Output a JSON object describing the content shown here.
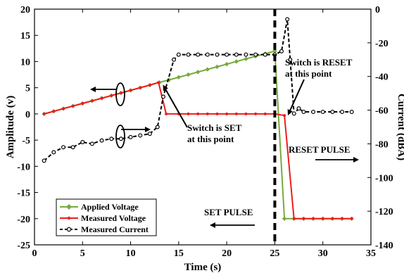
{
  "chart_data": {
    "type": "line",
    "xlabel": "Time (s)",
    "ylabel_left": "Amplitude (v)",
    "ylabel_right": "Current (dBA)",
    "xlim": [
      0,
      35
    ],
    "ylim_left": [
      -25,
      20
    ],
    "ylim_right": [
      -140,
      0
    ],
    "x_ticks": [
      0,
      5,
      10,
      15,
      20,
      25,
      30,
      35
    ],
    "y_left_ticks": [
      -25,
      -20,
      -15,
      -10,
      -5,
      0,
      5,
      10,
      15,
      20
    ],
    "y_right_ticks": [
      -140,
      -120,
      -100,
      -80,
      -60,
      -40,
      -20,
      0
    ],
    "series": [
      {
        "name": "Applied Voltage",
        "axis": "left",
        "color": "#77ab3c",
        "marker": "diamond",
        "x": [
          1,
          2,
          3,
          4,
          5,
          6,
          7,
          8,
          9,
          10,
          11,
          12,
          13,
          14,
          15,
          16,
          17,
          18,
          19,
          20,
          21,
          22,
          23,
          24,
          25,
          26,
          27,
          28,
          29,
          30,
          31,
          32,
          33
        ],
        "y": [
          0,
          0.5,
          1,
          1.5,
          2,
          2.5,
          3,
          3.5,
          4,
          4.5,
          5,
          5.5,
          6,
          6.5,
          7,
          7.5,
          8,
          8.5,
          9,
          9.5,
          10,
          10.5,
          11,
          11.5,
          12,
          -20,
          -20,
          -20,
          -20,
          -20,
          -20,
          -20,
          -20
        ]
      },
      {
        "name": "Measured Voltage",
        "axis": "left",
        "color": "#ee1c1c",
        "marker": "dot",
        "x": [
          1,
          2,
          3,
          4,
          5,
          6,
          7,
          8,
          9,
          10,
          11,
          12,
          12.9,
          13.7,
          15,
          16,
          17,
          18,
          19,
          20,
          21,
          22,
          23,
          24,
          25,
          26,
          27,
          28,
          29,
          30,
          31,
          32,
          33
        ],
        "y": [
          0,
          0.5,
          1,
          1.5,
          2,
          2.5,
          3,
          3.5,
          4,
          4.5,
          5,
          5.5,
          6,
          0,
          0,
          0,
          0,
          0,
          0,
          0,
          0,
          0,
          0,
          0,
          0,
          -0.3,
          -20,
          -20,
          -20,
          -20,
          -20,
          -20,
          -20
        ]
      },
      {
        "name": "Measured Current",
        "axis": "right",
        "color": "#000000",
        "marker": "open-circle",
        "dashed": true,
        "x": [
          1,
          2,
          3,
          4,
          5,
          6,
          7,
          8,
          9,
          10,
          11,
          12,
          12.8,
          13.4,
          14.5,
          15,
          16,
          17,
          18,
          19,
          20,
          21,
          22,
          23,
          24,
          25,
          25.7,
          26.3,
          26.6,
          27,
          27.5,
          28,
          29,
          30,
          31,
          32,
          33
        ],
        "y": [
          -90,
          -85,
          -82,
          -82,
          -79,
          -80,
          -78,
          -77,
          -77,
          -76,
          -75,
          -74,
          -70,
          -52,
          -30,
          -27,
          -27,
          -27,
          -27,
          -27,
          -27,
          -27,
          -27,
          -27,
          -27,
          -27,
          -25,
          -6,
          -30,
          -62,
          -59,
          -61,
          -61,
          -61,
          -61,
          -61,
          -61
        ]
      }
    ],
    "legend": {
      "placement": "bottom-left",
      "entries": [
        "Applied Voltage",
        "Measured Voltage",
        "Measured Current"
      ]
    },
    "event_line_x": 25,
    "annotations": [
      {
        "text": [
          "Switch is SET",
          "at this point"
        ],
        "points_to": [
          13,
          6
        ],
        "axis": "left"
      },
      {
        "text": [
          "Switch is RESET",
          "at this point"
        ],
        "points_to": [
          26.2,
          -0.3
        ],
        "axis": "left"
      },
      {
        "text": [
          "RESET PULSE"
        ],
        "arrow": "right"
      },
      {
        "text": [
          "SET PULSE"
        ],
        "arrow": "left"
      }
    ]
  }
}
